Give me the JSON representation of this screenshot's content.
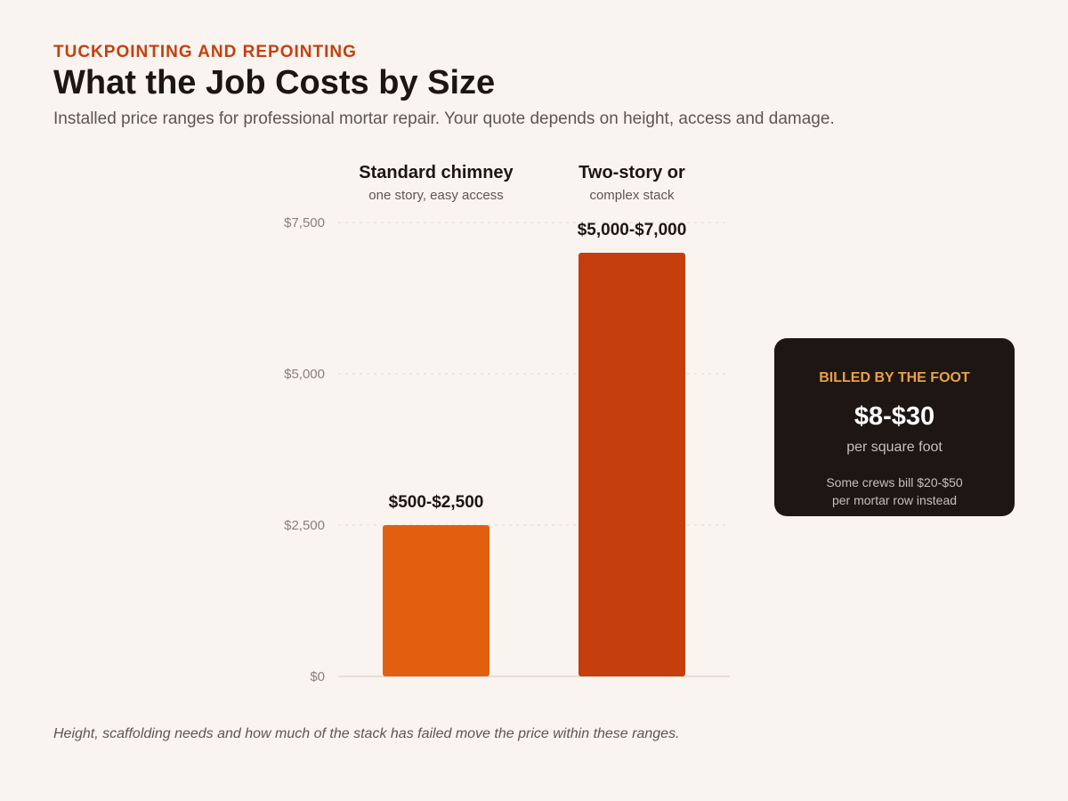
{
  "header": {
    "eyebrow": "TUCKPOINTING AND REPOINTING",
    "title": "What the Job Costs by Size",
    "subtitle": "Installed price ranges for professional mortar repair. Your quote depends on height, access and damage."
  },
  "chart_data": {
    "type": "bar",
    "categories": [
      {
        "label": "Standard chimney",
        "sublabel": "one story, easy access"
      },
      {
        "label": "Two-story or",
        "sublabel": "complex stack"
      }
    ],
    "values": [
      2500,
      7000
    ],
    "data_labels": [
      "$500-$2,500",
      "$5,000-$7,000"
    ],
    "ylim": [
      0,
      7500
    ],
    "yticks": [
      0,
      2500,
      5000,
      7500
    ],
    "ytick_labels": [
      "$0",
      "$2,500",
      "$5,000",
      "$7,500"
    ],
    "grid": true,
    "legend": "none",
    "colors": [
      "#e35f10",
      "#c43e0e"
    ]
  },
  "callout": {
    "eyebrow": "BILLED BY THE FOOT",
    "value": "$8-$30",
    "unit": "per square foot",
    "note_line1": "Some crews bill $20-$50",
    "note_line2": "per mortar row instead"
  },
  "footnote": "Height, scaffolding needs and how much of the stack has failed move the price within these ranges.",
  "colors": {
    "accent": "#c4400f",
    "background": "#f9f4ef",
    "callout_bg": "#1e1613",
    "callout_accent": "#e8a246"
  }
}
